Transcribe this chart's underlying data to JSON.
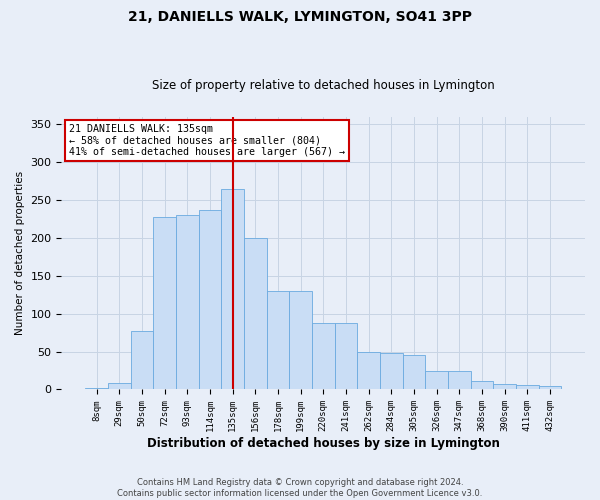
{
  "title": "21, DANIELLS WALK, LYMINGTON, SO41 3PP",
  "subtitle": "Size of property relative to detached houses in Lymington",
  "xlabel": "Distribution of detached houses by size in Lymington",
  "ylabel": "Number of detached properties",
  "categories": [
    "8sqm",
    "29sqm",
    "50sqm",
    "72sqm",
    "93sqm",
    "114sqm",
    "135sqm",
    "156sqm",
    "178sqm",
    "199sqm",
    "220sqm",
    "241sqm",
    "262sqm",
    "284sqm",
    "305sqm",
    "326sqm",
    "347sqm",
    "368sqm",
    "390sqm",
    "411sqm",
    "432sqm"
  ],
  "values": [
    2,
    8,
    77,
    228,
    230,
    237,
    265,
    200,
    130,
    130,
    88,
    88,
    50,
    48,
    46,
    24,
    24,
    11,
    7,
    6,
    5
  ],
  "bar_color": "#c9ddf5",
  "bar_edge_color": "#6aaae0",
  "highlight_idx": 6,
  "highlight_line_color": "#cc0000",
  "annotation_line1": "21 DANIELLS WALK: 135sqm",
  "annotation_line2": "← 58% of detached houses are smaller (804)",
  "annotation_line3": "41% of semi-detached houses are larger (567) →",
  "annotation_box_facecolor": "#ffffff",
  "annotation_box_edgecolor": "#cc0000",
  "grid_color": "#c8d4e4",
  "bg_color": "#e8eef8",
  "footer_line1": "Contains HM Land Registry data © Crown copyright and database right 2024.",
  "footer_line2": "Contains public sector information licensed under the Open Government Licence v3.0.",
  "ylim": [
    0,
    360
  ],
  "yticks": [
    0,
    50,
    100,
    150,
    200,
    250,
    300,
    350
  ]
}
